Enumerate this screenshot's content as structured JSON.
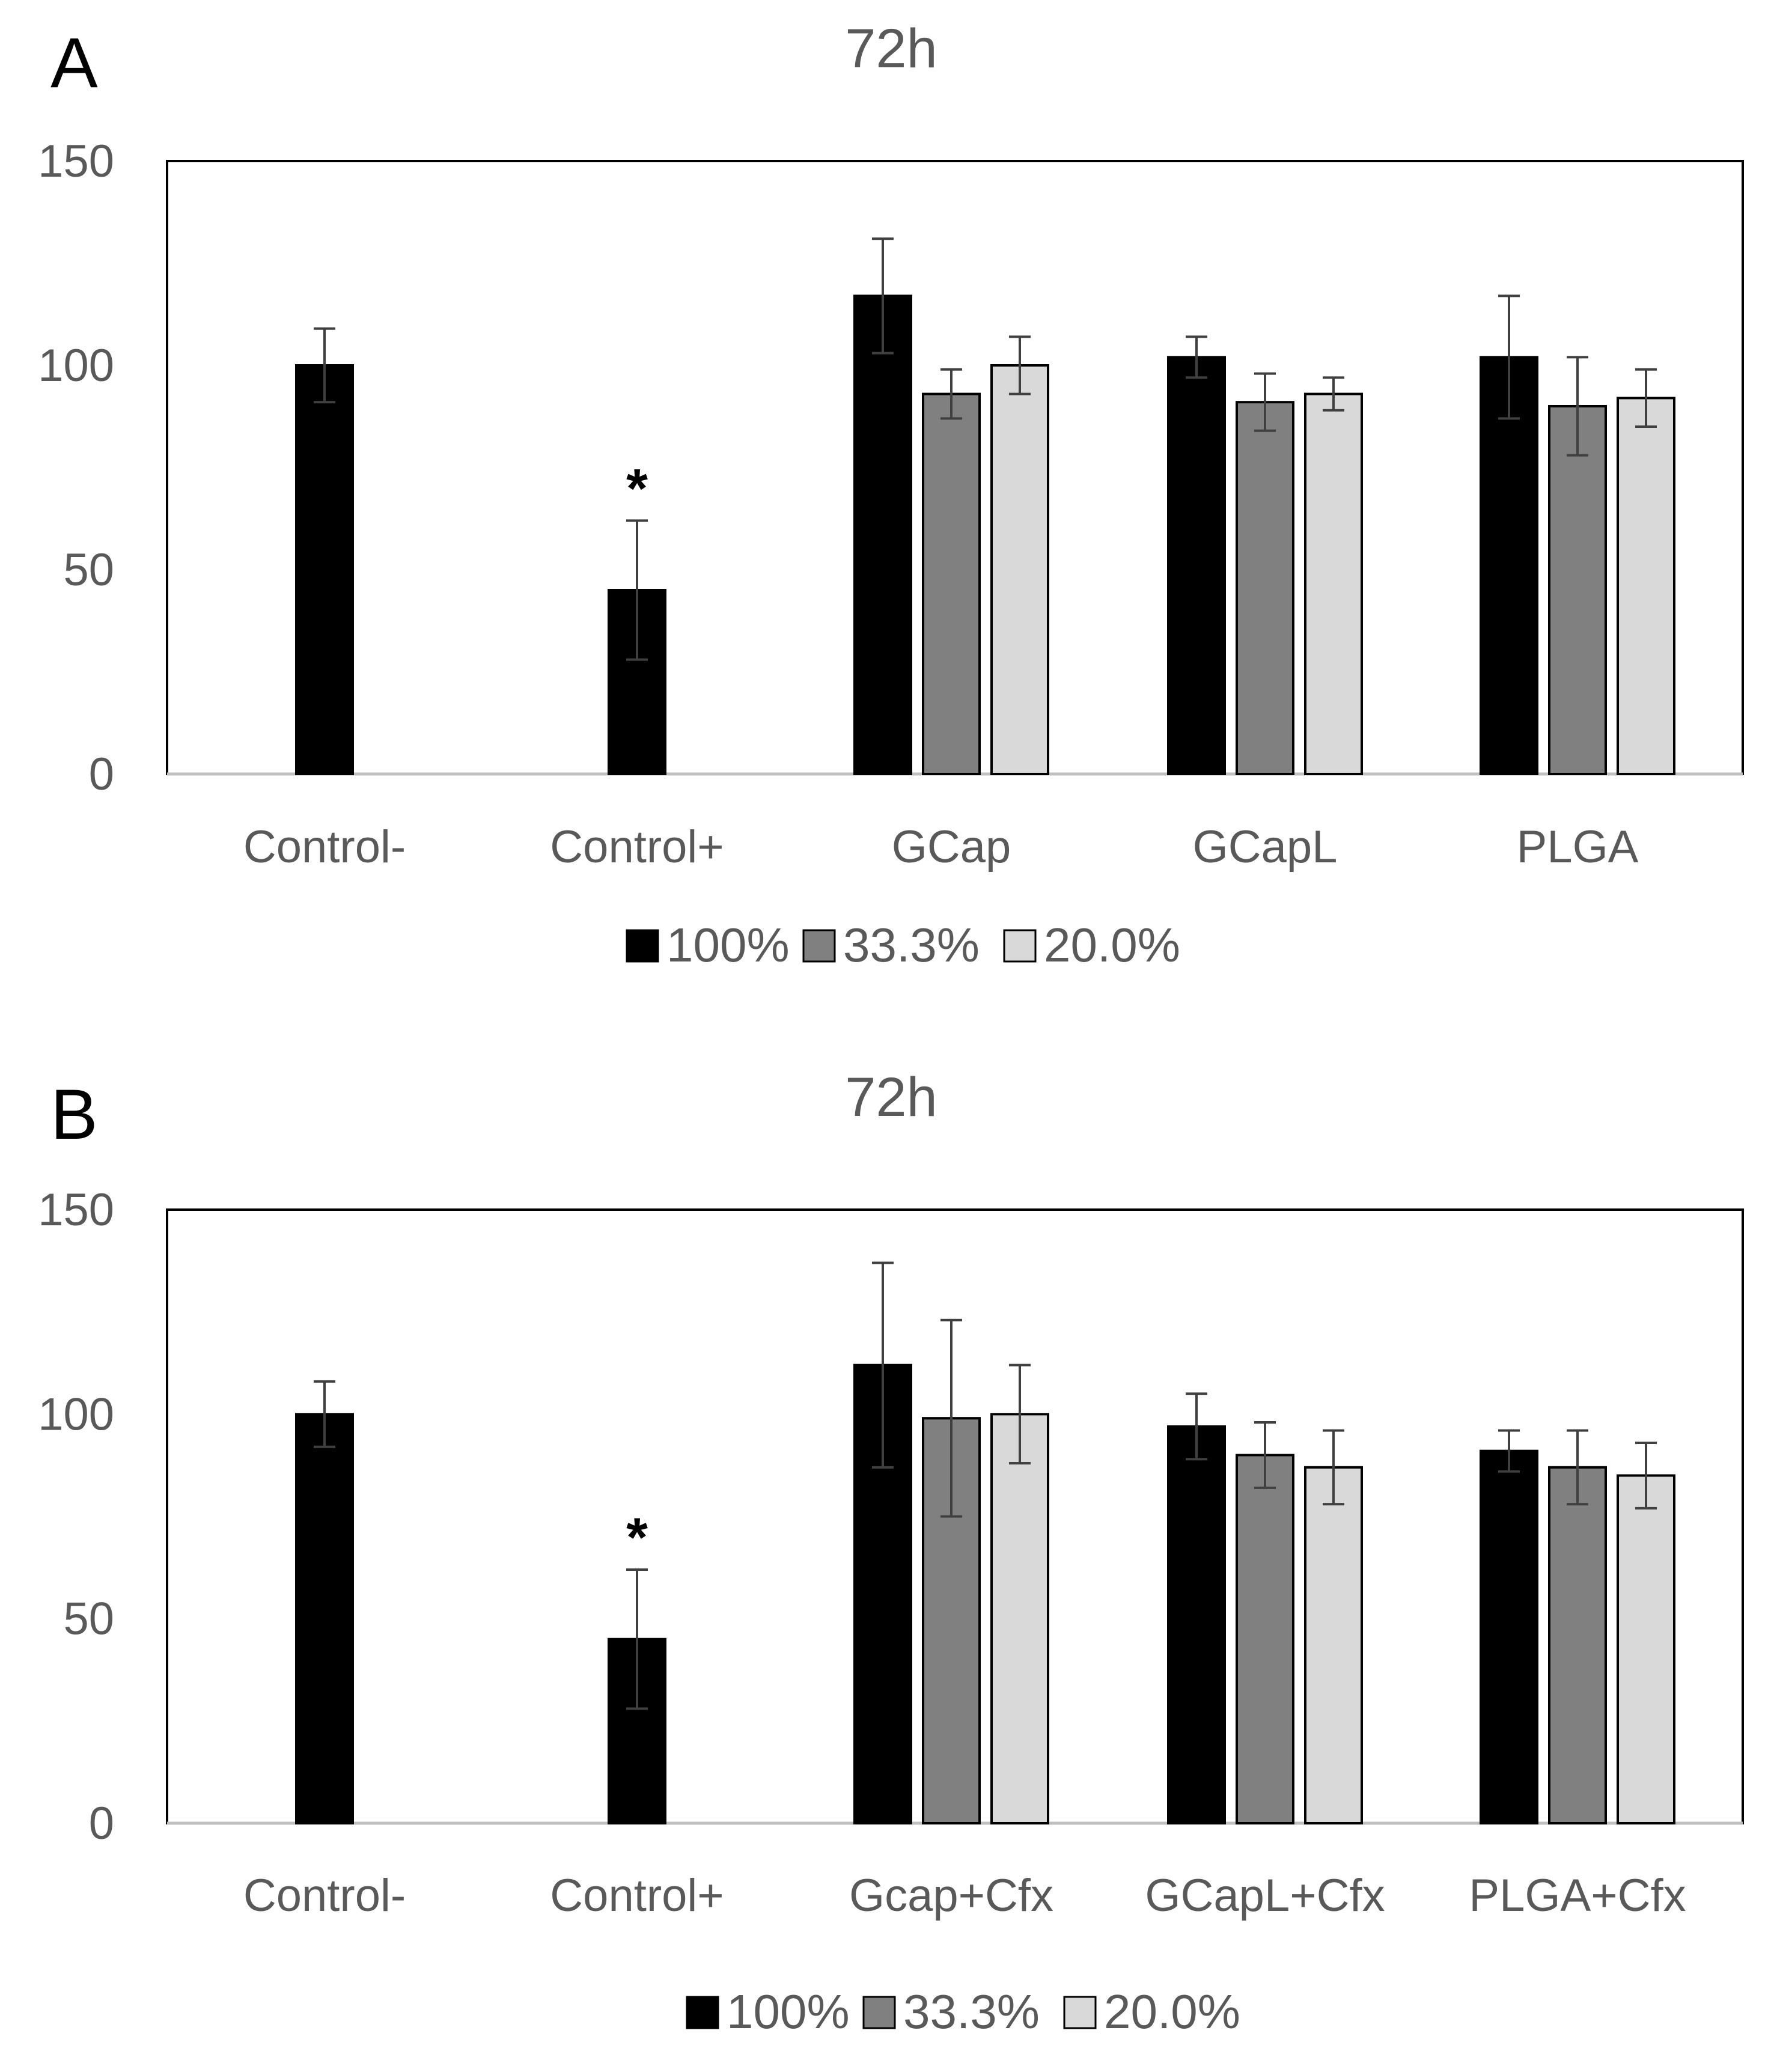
{
  "chart_data": [
    {
      "panel_label": "A",
      "type": "bar",
      "title": "72h",
      "xlabel": "",
      "ylabel": "",
      "ylim": [
        0,
        150
      ],
      "yticks": [
        "0",
        "50",
        "100",
        "150"
      ],
      "grid": false,
      "legend_position": "bottom-center",
      "categories": [
        "Control-",
        "Control+",
        "GCap",
        "GCapL",
        "PLGA"
      ],
      "series": [
        {
          "name": "100%",
          "color": "#000000",
          "values": [
            100,
            45,
            117,
            102,
            102
          ],
          "errors": [
            9,
            17,
            14,
            5,
            15
          ]
        },
        {
          "name": "33.3%",
          "color": "#808080",
          "values": [
            null,
            null,
            93,
            91,
            90
          ],
          "errors": [
            null,
            null,
            6,
            7,
            12
          ]
        },
        {
          "name": "20.0%",
          "color": "#d9d9d9",
          "values": [
            null,
            null,
            100,
            93,
            92
          ],
          "errors": [
            null,
            null,
            7,
            4,
            7
          ]
        }
      ],
      "annotations": [
        {
          "text": "*",
          "category": "Control+"
        }
      ]
    },
    {
      "panel_label": "B",
      "type": "bar",
      "title": "72h",
      "xlabel": "",
      "ylabel": "",
      "ylim": [
        0,
        150
      ],
      "yticks": [
        "0",
        "50",
        "100",
        "150"
      ],
      "grid": false,
      "legend_position": "bottom-center",
      "categories": [
        "Control-",
        "Control+",
        "Gcap+Cfx",
        "GCapL+Cfx",
        "PLGA+Cfx"
      ],
      "series": [
        {
          "name": "100%",
          "color": "#000000",
          "values": [
            100,
            45,
            112,
            97,
            91
          ],
          "errors": [
            8,
            17,
            25,
            8,
            5
          ]
        },
        {
          "name": "33.3%",
          "color": "#808080",
          "values": [
            null,
            null,
            99,
            90,
            87
          ],
          "errors": [
            null,
            null,
            24,
            8,
            9
          ]
        },
        {
          "name": "20.0%",
          "color": "#d9d9d9",
          "values": [
            null,
            null,
            100,
            87,
            85
          ],
          "errors": [
            null,
            null,
            12,
            9,
            8
          ]
        }
      ],
      "annotations": [
        {
          "text": "*",
          "category": "Control+"
        }
      ]
    }
  ]
}
